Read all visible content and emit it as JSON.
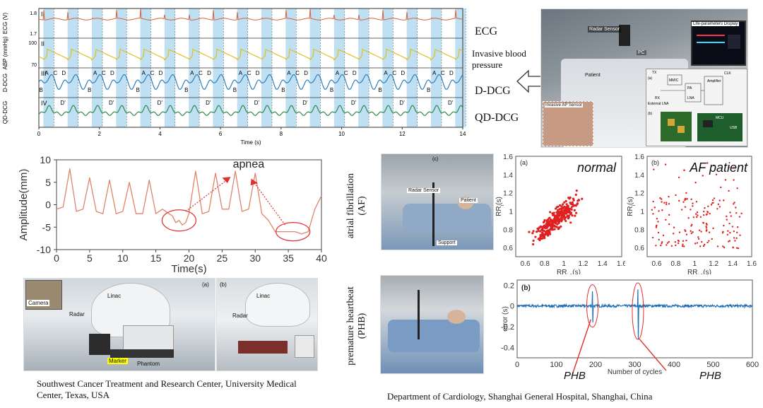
{
  "ecg_panel": {
    "row_labels": [
      "I",
      "II",
      "III",
      "IV"
    ],
    "y_labels": [
      "ECG (V)",
      "ABP (mmHg)",
      "D-DCG",
      "QD-DCG"
    ],
    "xaxis_title": "Time (s)",
    "xticks": [
      "0",
      "2",
      "4",
      "6",
      "8",
      "10",
      "12",
      "14"
    ],
    "yticks_ecg": [
      "1.8",
      "1.7"
    ],
    "yticks_abp": [
      "100",
      "70"
    ],
    "wave_letters": [
      "A",
      "B",
      "C",
      "D"
    ],
    "d_prime": "D'",
    "side_labels": {
      "ecg": "ECG",
      "ibp": "Invasive blood pressure",
      "ddcg": "D-DCG",
      "qddcg": "QD-DCG"
    }
  },
  "or_photo": {
    "labels": [
      "Radar Sensor",
      "Life-parameters Display",
      "PC",
      "Patient",
      "Invasive AP Sensor"
    ],
    "circuit_labels": [
      "(a)",
      "(b)",
      "TX",
      "RX",
      "PA",
      "LNA",
      "MMIC",
      "CLK",
      "Amplifier",
      "MCU",
      "USB",
      "External LNA"
    ]
  },
  "chart_data": {
    "type": "line",
    "title": "",
    "xlabel": "Time(s)",
    "ylabel": "Amplitude(mm)",
    "xlim": [
      0,
      40
    ],
    "ylim": [
      -10,
      10
    ],
    "xticks": [
      0,
      5,
      10,
      15,
      20,
      25,
      30,
      35,
      40
    ],
    "yticks": [
      -10,
      -5,
      0,
      5,
      10
    ],
    "annotation": "apnea",
    "x": [
      0,
      1,
      2,
      3,
      4,
      5,
      6,
      7,
      8,
      9,
      10,
      11,
      12,
      13,
      14,
      15,
      16,
      17,
      17.5,
      18,
      18.5,
      19,
      19.5,
      20,
      21,
      22,
      23,
      24,
      25,
      26,
      27,
      28,
      29,
      30,
      31,
      32,
      33,
      34,
      35,
      36,
      37,
      38,
      39,
      40
    ],
    "y": [
      -1,
      -0.5,
      8,
      -1.5,
      -1,
      6,
      -1.5,
      -2,
      5.5,
      -2,
      -1.5,
      5,
      -2,
      -2,
      5.5,
      -2,
      -1,
      -2,
      -2.5,
      -4,
      -3.5,
      -4.5,
      -4,
      -2,
      7.5,
      -2,
      -1.5,
      7,
      -1,
      -1,
      7.5,
      -1.5,
      -1,
      7,
      -2,
      -3.5,
      -6,
      -6,
      -6,
      -6,
      -6.5,
      -6,
      -1,
      2
    ]
  },
  "treatment_photos": {
    "labels_a": [
      "Camera",
      "Linac",
      "Radar",
      "Marker",
      "Phantom",
      "(a)"
    ],
    "labels_b": [
      "Linac",
      "Radar",
      "(b)"
    ]
  },
  "captions": {
    "left": "Southwest Cancer Treatment and Research Center, University Medical Center, Texas, USA",
    "right": "Department of Cardiology, Shanghai General Hospital, Shanghai, China"
  },
  "af_section": {
    "row_label": "atrial fibrillation (AF)",
    "photo_labels": [
      "(c)",
      "Radar Sensor",
      "Patient",
      "Support"
    ],
    "normal_title": "normal",
    "af_title": "AF patient",
    "panel_a": "(a)",
    "panel_b": "(b)",
    "xlabel": "RR",
    "ylabel": "RR",
    "sub_x": "i-1",
    "sub_y": "i",
    "suffix": "(s)",
    "ticks": [
      "0.6",
      "0.8",
      "1",
      "1.2",
      "1.4",
      "1.6"
    ]
  },
  "phb_section": {
    "row_label": "premature heartbeat (PHB)",
    "panel": "(b)",
    "ylabel": "error (s)",
    "xlabel": "Number of cycles",
    "xticks": [
      "0",
      "100",
      "200",
      "300",
      "400",
      "500",
      "600"
    ],
    "yticks": [
      "0.2",
      "0",
      "-0.2",
      "-0.4"
    ],
    "phb_label": "PHB"
  },
  "colors": {
    "ecg": "#d9603a",
    "abp": "#e0c020",
    "ddcg": "#2d7fc0",
    "qddcg": "#2e8a4a",
    "band": "#bfe0f3",
    "amp_line": "#e0846a",
    "scatter": "#e02020",
    "error_line": "#1f6fb5",
    "annot": "#e03030"
  }
}
